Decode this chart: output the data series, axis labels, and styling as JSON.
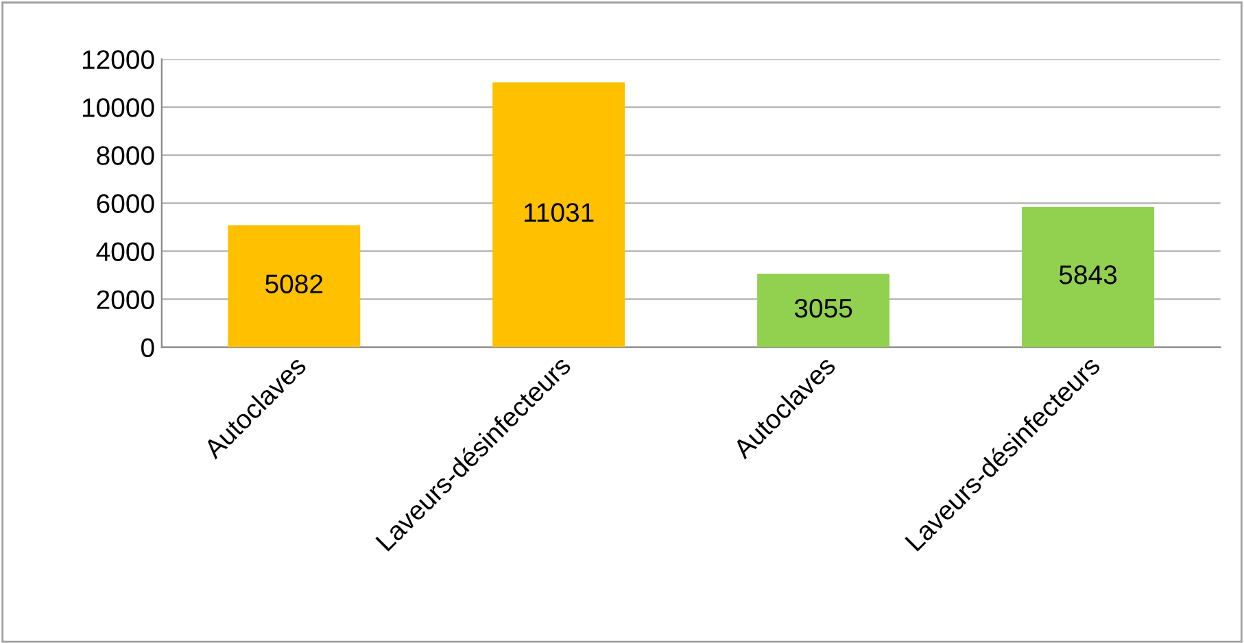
{
  "chart_data": {
    "type": "bar",
    "categories": [
      "Autoclaves",
      "Laveurs-désinfecteurs",
      "Autoclaves",
      "Laveurs-désinfecteurs"
    ],
    "values": [
      5082,
      11031,
      3055,
      5843
    ],
    "colors": [
      "#ffc000",
      "#ffc000",
      "#92d050",
      "#92d050"
    ],
    "ylim": [
      0,
      12000
    ],
    "yticks": [
      0,
      2000,
      4000,
      6000,
      8000,
      10000,
      12000
    ],
    "grid": "y",
    "data_labels": true
  }
}
